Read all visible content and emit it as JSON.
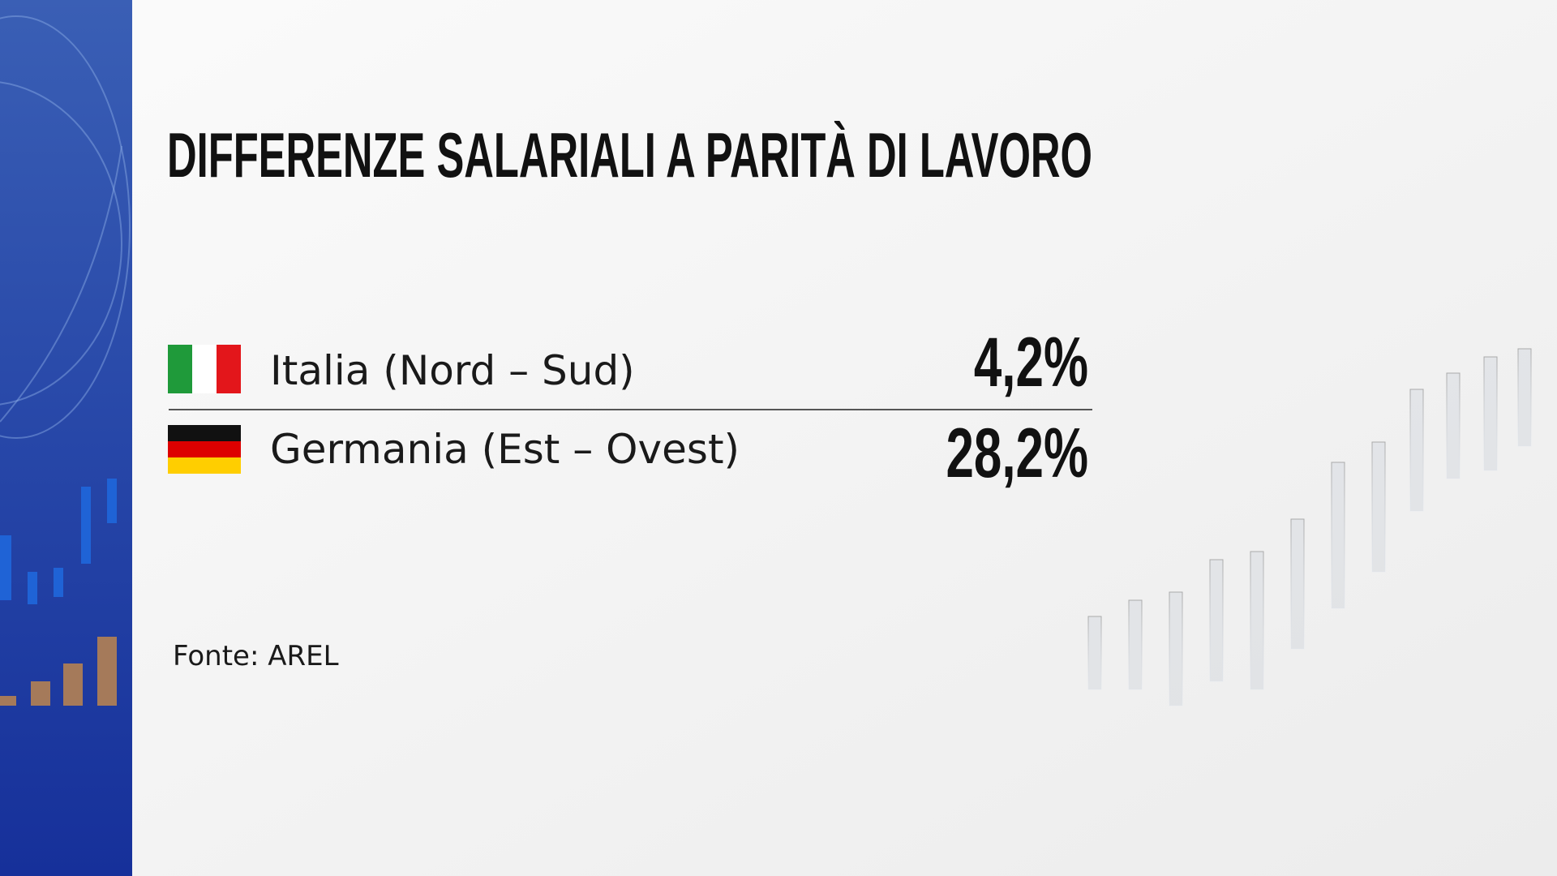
{
  "title": "DIFFERENZE SALARIALI A PARITÀ DI LAVORO",
  "rows": [
    {
      "label": "Italia (Nord – Sud)",
      "value": "4,2%"
    },
    {
      "label": "Germania  (Est – Ovest)",
      "value": "28,2%"
    }
  ],
  "source": "Fonte: AREL"
}
